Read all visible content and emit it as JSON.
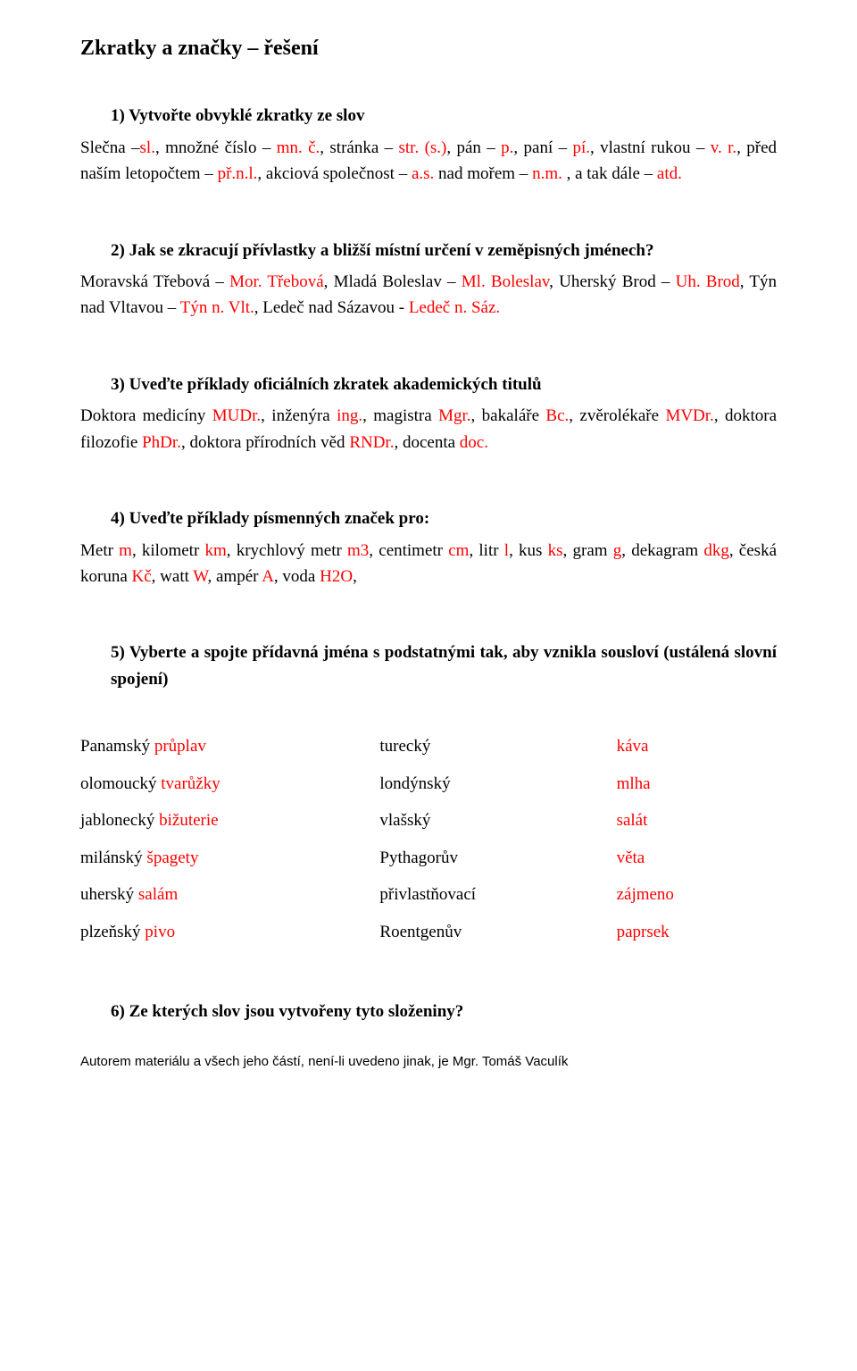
{
  "title": "Zkratky a značky – řešení",
  "q1": {
    "heading": "1)  Vytvořte obvyklé zkratky ze slov",
    "line1_a": "Slečna –",
    "line1_b": "sl.",
    "line1_c": ", množné číslo – ",
    "line1_d": "mn. č.",
    "line1_e": ", stránka – ",
    "line1_f": "str. (s.)",
    "line1_g": ", pán – ",
    "line1_h": "p.",
    "line1_i": ", paní – ",
    "line1_j": "pí.",
    "line1_k": ", vlastní rukou – ",
    "line1_l": "v. r.",
    "line1_m": ", před naším letopočtem – ",
    "line1_n": "př.n.l.",
    "line1_o": ", akciová společnost – ",
    "line1_p": "a.s.",
    "line1_q": " nad mořem – ",
    "line1_r": "n.m.",
    "line1_s": " ,  a tak dále – ",
    "line1_t": "atd."
  },
  "q2": {
    "heading": "2)  Jak se zkracují přívlastky a bližší místní určení v zeměpisných jménech?",
    "a": "Moravská Třebová – ",
    "b": "Mor. Třebová",
    "c": ", Mladá Boleslav – ",
    "d": "Ml. Boleslav",
    "e": ", Uherský Brod – ",
    "f": "Uh. Brod",
    "g": ", Týn nad Vltavou – ",
    "h": "Týn n. Vlt.",
    "i": ", Ledeč nad Sázavou - ",
    "j": "Ledeč n. Sáz."
  },
  "q3": {
    "heading": "3)  Uveďte příklady oficiálních  zkratek akademických titulů",
    "a": "Doktora medicíny ",
    "b": "MUDr.",
    "c": ", inženýra ",
    "d": "ing.",
    "e": ", magistra ",
    "f": "Mgr.",
    "g": ", bakaláře ",
    "h": "Bc.",
    "i": ", zvěrolékaře ",
    "j": "MVDr.",
    "k": ", doktora filozofie ",
    "l": "PhDr.",
    "m": ", doktora přírodních věd ",
    "n": "RNDr.",
    "o": ", docenta ",
    "p": "doc."
  },
  "q4": {
    "heading": "4)  Uveďte příklady písmenných značek pro:",
    "a": "Metr ",
    "b": "m",
    "c": ", kilometr ",
    "d": "km",
    "e": ", krychlový metr ",
    "f": "m3",
    "g": ", centimetr ",
    "h": "cm",
    "i": ", litr ",
    "j": "l",
    "k": ", kus ",
    "l": "ks",
    "m": ", gram ",
    "n": "g",
    "o": ", dekagram ",
    "p": "dkg",
    "q": ", česká koruna ",
    "r": "Kč",
    "s": ", watt ",
    "t": "W",
    "u": ", ampér ",
    "v": "A",
    "w": ", voda ",
    "x": "H2O",
    "y": ","
  },
  "q5": {
    "heading": "5)  Vyberte a spojte přídavná jména s podstatnými tak, aby vznikla sousloví (ustálená slovní spojení)",
    "rows": [
      {
        "c1a": "Panamský ",
        "c1b": "průplav",
        "c2": "turecký",
        "c3": "káva"
      },
      {
        "c1a": "olomoucký ",
        "c1b": "tvarůžky",
        "c2": "londýnský",
        "c3": "mlha"
      },
      {
        "c1a": "jablonecký ",
        "c1b": "bižuterie",
        "c2": "vlašský",
        "c3": "salát"
      },
      {
        "c1a": "milánský ",
        "c1b": "špagety",
        "c2": "Pythagorův",
        "c3": "věta"
      },
      {
        "c1a": "uherský ",
        "c1b": "salám",
        "c2": "přivlastňovací",
        "c3": "zájmeno"
      },
      {
        "c1a": "plzeňský ",
        "c1b": "pivo",
        "c2": "Roentgenův",
        "c3": "paprsek"
      }
    ]
  },
  "q6": {
    "heading": "6)  Ze kterých slov jsou vytvořeny tyto složeniny?"
  },
  "footer": "Autorem materiálu a všech jeho částí, není-li uvedeno jinak, je Mgr. Tomáš Vaculík"
}
